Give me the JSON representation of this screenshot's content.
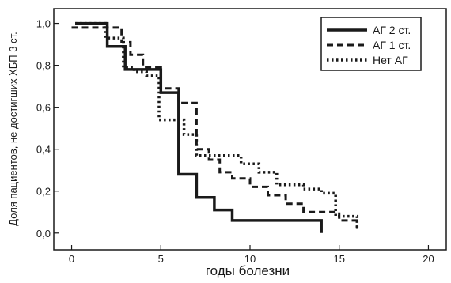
{
  "chart_data": {
    "type": "line",
    "step": true,
    "title": "",
    "xlabel": "годы болезни",
    "ylabel": "Доля пациентов, не достигших ХБП 3 ст.",
    "xlim": [
      -1,
      21
    ],
    "ylim": [
      -0.08,
      1.07
    ],
    "xticks": [
      0,
      5,
      10,
      15,
      20
    ],
    "yticks": [
      0.0,
      0.2,
      0.4,
      0.6,
      0.8,
      1.0
    ],
    "ytick_labels": [
      "0,0",
      "0,2",
      "0,4",
      "0,6",
      "0,8",
      "1,0"
    ],
    "legend_position": "top-right",
    "grid": false,
    "series": [
      {
        "name": "АГ 2 ст.",
        "style": "solid",
        "color": "#1a1a1a",
        "x": [
          0.2,
          2.0,
          2.0,
          3.0,
          3.0,
          5.0,
          5.0,
          6.0,
          6.0,
          7.0,
          7.0,
          8.0,
          8.0,
          9.0,
          9.0,
          14.0,
          14.0
        ],
        "y": [
          1.0,
          1.0,
          0.89,
          0.89,
          0.78,
          0.78,
          0.67,
          0.67,
          0.28,
          0.28,
          0.17,
          0.17,
          0.11,
          0.11,
          0.06,
          0.06,
          0.0
        ]
      },
      {
        "name": "АГ 1 ст.",
        "style": "dashed",
        "color": "#1a1a1a",
        "x": [
          0.0,
          0.7,
          0.7,
          2.8,
          2.8,
          3.3,
          3.3,
          4.0,
          4.0,
          5.0,
          5.0,
          6.0,
          6.0,
          6.5,
          6.5,
          7.0,
          7.0,
          7.7,
          7.7,
          8.3,
          8.3,
          9.0,
          9.0,
          10.0,
          10.0,
          11.0,
          11.0,
          12.0,
          12.0,
          13.0,
          13.0,
          14.0,
          14.0,
          15.0,
          15.0,
          16.0,
          16.0
        ],
        "y": [
          0.98,
          0.98,
          0.98,
          0.98,
          0.91,
          0.91,
          0.85,
          0.85,
          0.79,
          0.79,
          0.69,
          0.69,
          0.62,
          0.62,
          0.62,
          0.62,
          0.4,
          0.4,
          0.35,
          0.35,
          0.29,
          0.29,
          0.26,
          0.26,
          0.22,
          0.22,
          0.18,
          0.18,
          0.14,
          0.14,
          0.1,
          0.1,
          0.1,
          0.1,
          0.06,
          0.06,
          0.02
        ]
      },
      {
        "name": "Нет АГ",
        "style": "dotted",
        "color": "#1a1a1a",
        "x": [
          0.2,
          1.9,
          1.9,
          2.9,
          2.9,
          3.5,
          3.5,
          4.2,
          4.2,
          4.9,
          4.9,
          5.6,
          5.6,
          6.3,
          6.3,
          7.0,
          7.0,
          8.0,
          8.0,
          9.5,
          9.5,
          10.5,
          10.5,
          11.5,
          11.5,
          13.0,
          13.0,
          14.0,
          14.0,
          14.8,
          14.8,
          15.2,
          15.2,
          16.0,
          16.0
        ],
        "y": [
          1.0,
          1.0,
          0.93,
          0.93,
          0.79,
          0.79,
          0.77,
          0.77,
          0.75,
          0.75,
          0.54,
          0.54,
          0.54,
          0.54,
          0.47,
          0.47,
          0.37,
          0.37,
          0.37,
          0.37,
          0.33,
          0.33,
          0.29,
          0.29,
          0.23,
          0.23,
          0.21,
          0.21,
          0.19,
          0.19,
          0.08,
          0.08,
          0.08,
          0.08,
          0.02
        ]
      }
    ]
  }
}
